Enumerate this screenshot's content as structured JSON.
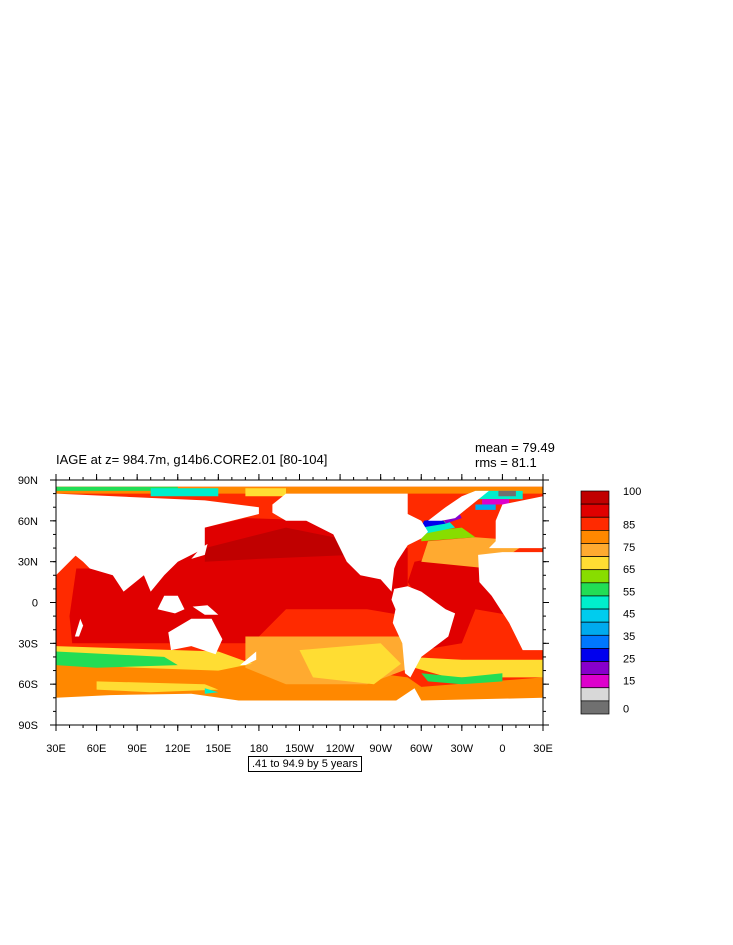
{
  "chart_data": {
    "type": "heatmap",
    "title": "IAGE at z= 984.7m, g14b6.CORE2.01 [80-104]",
    "stats": {
      "mean": "mean = 79.49",
      "rms": "rms = 81.1"
    },
    "note": ".41 to 94.9 by 5 years",
    "x_ticks": [
      "30E",
      "60E",
      "90E",
      "120E",
      "150E",
      "180",
      "150W",
      "120W",
      "90W",
      "60W",
      "30W",
      "0",
      "30E"
    ],
    "x_tick_lon": [
      30,
      60,
      90,
      120,
      150,
      180,
      210,
      240,
      270,
      300,
      330,
      360,
      390
    ],
    "y_ticks": [
      "90N",
      "60N",
      "30N",
      "0",
      "30S",
      "60S",
      "90S"
    ],
    "y_tick_lat": [
      90,
      60,
      30,
      0,
      -30,
      -60,
      -90
    ],
    "xlim": [
      30,
      390
    ],
    "ylim": [
      -90,
      90
    ],
    "colorbar": {
      "labels": [
        "100",
        "85",
        "75",
        "65",
        "55",
        "45",
        "35",
        "25",
        "15",
        "0"
      ],
      "label_levels": [
        100,
        85,
        75,
        65,
        55,
        45,
        35,
        25,
        15,
        0
      ],
      "colors": [
        "#c00000",
        "#e00000",
        "#ff2a00",
        "#ff8800",
        "#ffaa30",
        "#ffdd33",
        "#88dd00",
        "#22dd55",
        "#00eecc",
        "#00ccee",
        "#00aaee",
        "#0077ff",
        "#0000ee",
        "#8800cc",
        "#dd00cc",
        "#d8d8d8",
        "#707070"
      ]
    },
    "colors": {
      "land": "#ffffff",
      "v100": "#c00000",
      "v90": "#e00000",
      "v85": "#ff2a00",
      "v80": "#ff8800",
      "v75": "#ffaa30",
      "v70": "#ffdd33",
      "v60": "#88dd00",
      "v55": "#22dd55",
      "v45": "#00eecc",
      "v35": "#00aaee",
      "v20": "#0000ee",
      "v15": "#8800cc",
      "v10": "#dd00cc",
      "v0": "#707070"
    }
  }
}
